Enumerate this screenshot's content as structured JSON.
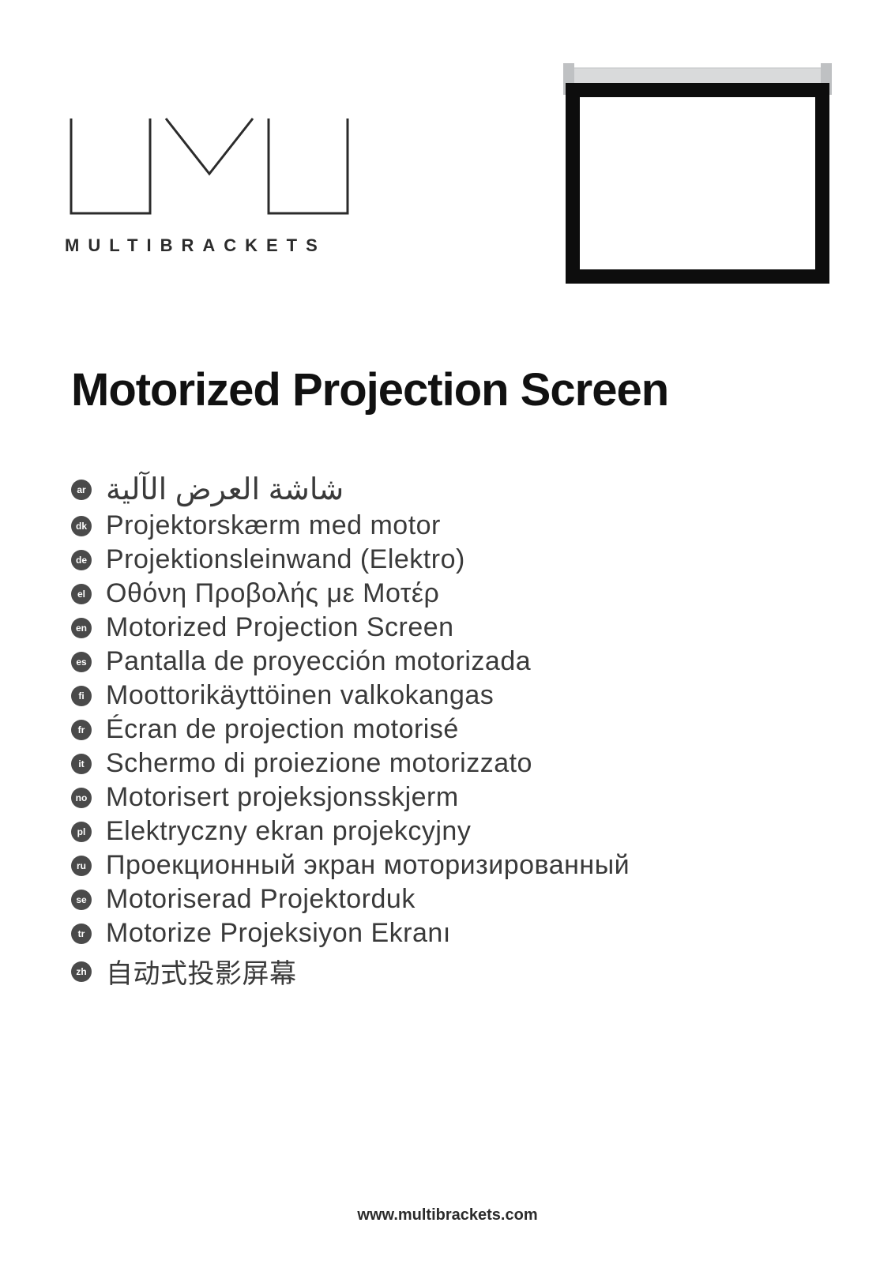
{
  "brand": {
    "name_letterspaced": "MULTIBRACKETS",
    "logo_stroke": "#2b2b2b",
    "logo_stroke_width": 3
  },
  "product_image": {
    "housing_color": "#d9dadb",
    "border_color": "#0d0d0d",
    "border_width": 18,
    "screen_color": "#ffffff",
    "bottom_bar_color": "#0d0d0d",
    "cap_color": "#bfc1c3"
  },
  "title": "Motorized Projection Screen",
  "translations": [
    {
      "code": "ar",
      "text": "شاشة العرض الآلية",
      "rtl": true
    },
    {
      "code": "dk",
      "text": "Projektorskærm med motor"
    },
    {
      "code": "de",
      "text": "Projektionsleinwand (Elektro)"
    },
    {
      "code": "el",
      "text": "Οθόνη Προβολής με Μοτέρ"
    },
    {
      "code": "en",
      "text": "Motorized Projection Screen"
    },
    {
      "code": "es",
      "text": "Pantalla de proyección motorizada"
    },
    {
      "code": "fi",
      "text": "Moottorikäyttöinen valkokangas"
    },
    {
      "code": "fr",
      "text": "Écran de projection motorisé"
    },
    {
      "code": "it",
      "text": "Schermo di proiezione motorizzato"
    },
    {
      "code": "no",
      "text": "Motorisert projeksjonsskjerm"
    },
    {
      "code": "pl",
      "text": "Elektryczny ekran projekcyjny"
    },
    {
      "code": "ru",
      "text": "Проекционный экран моторизированный"
    },
    {
      "code": "se",
      "text": "Motoriserad Projektorduk"
    },
    {
      "code": "tr",
      "text": "Motorize Projeksiyon Ekranı"
    },
    {
      "code": "zh",
      "text": "自动式投影屏幕"
    }
  ],
  "footer": {
    "url": "www.multibrackets.com"
  },
  "colors": {
    "page_bg": "#ffffff",
    "title_color": "#111111",
    "text_color": "#3a3a3a",
    "badge_bg": "#4a4a4a",
    "badge_fg": "#ffffff"
  }
}
